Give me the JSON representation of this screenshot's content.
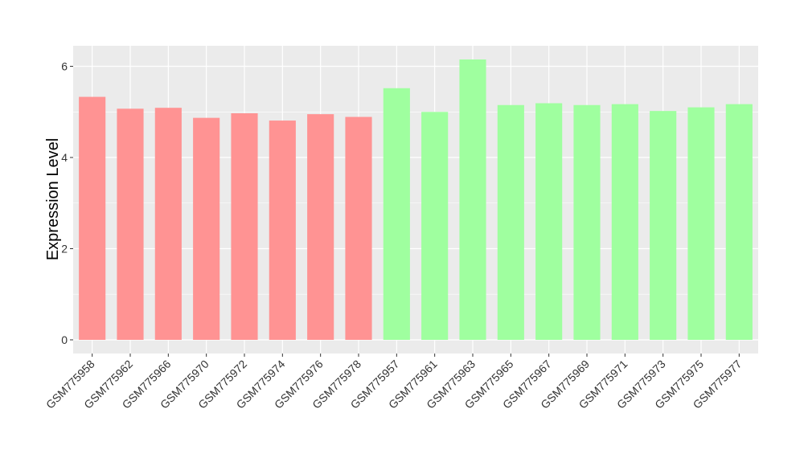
{
  "chart_data": {
    "type": "bar",
    "title": "",
    "xlabel": "",
    "ylabel": "Expression Level",
    "ylim": [
      -0.3,
      6.45
    ],
    "yticks": [
      0,
      2,
      4,
      6
    ],
    "grid": true,
    "categories": [
      "GSM775958",
      "GSM775962",
      "GSM775966",
      "GSM775970",
      "GSM775972",
      "GSM775974",
      "GSM775976",
      "GSM775978",
      "GSM775957",
      "GSM775961",
      "GSM775963",
      "GSM775965",
      "GSM775967",
      "GSM775969",
      "GSM775971",
      "GSM775973",
      "GSM775975",
      "GSM775977"
    ],
    "values": [
      5.33,
      5.07,
      5.09,
      4.87,
      4.97,
      4.81,
      4.95,
      4.89,
      5.52,
      5.0,
      6.15,
      5.15,
      5.19,
      5.15,
      5.17,
      5.02,
      5.1,
      5.17
    ],
    "groups": [
      0,
      0,
      0,
      0,
      0,
      0,
      0,
      0,
      1,
      1,
      1,
      1,
      1,
      1,
      1,
      1,
      1,
      1
    ],
    "group_colors": [
      "#FF9393",
      "#9FFF9F"
    ],
    "panel_background": "#EBEBEB",
    "grid_color": "#FFFFFF"
  }
}
